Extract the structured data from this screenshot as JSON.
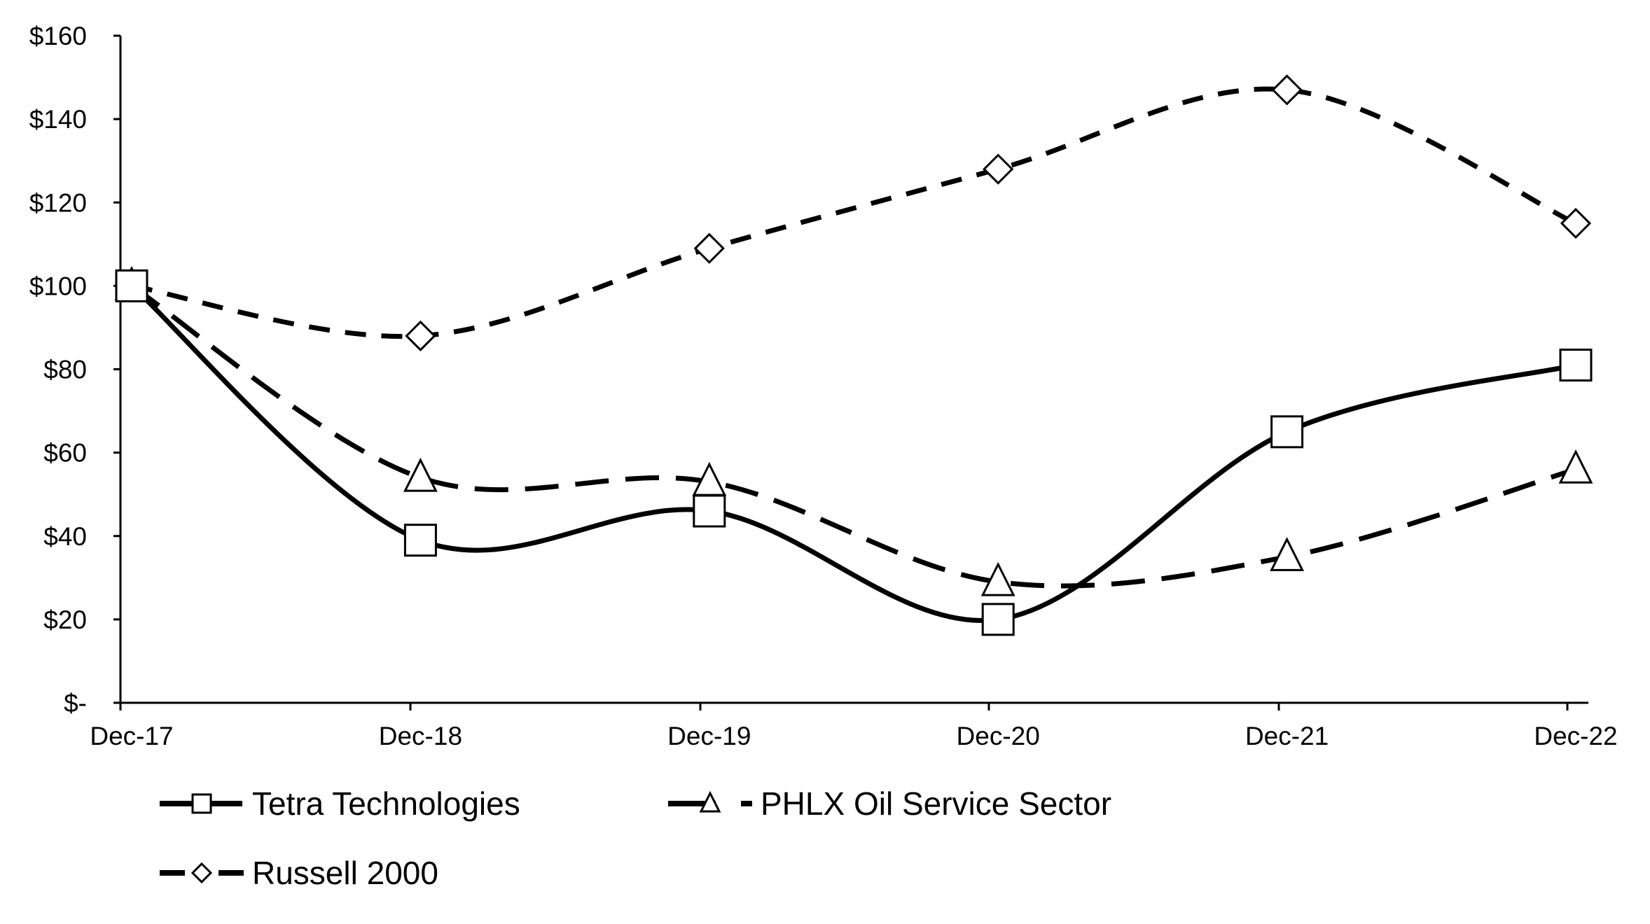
{
  "chart_data": {
    "type": "line",
    "title": "",
    "xlabel": "",
    "ylabel": "",
    "categories": [
      "Dec-17",
      "Dec-18",
      "Dec-19",
      "Dec-20",
      "Dec-21",
      "Dec-22"
    ],
    "y_ticks": [
      0,
      20,
      40,
      60,
      80,
      100,
      120,
      140,
      160
    ],
    "y_tick_labels": [
      "$-",
      "$20",
      "$40",
      "$60",
      "$80",
      "$100",
      "$120",
      "$140",
      "$160"
    ],
    "ylim": [
      0,
      160
    ],
    "grid": false,
    "legend_position": "bottom",
    "series": [
      {
        "name": "Tetra Technologies",
        "marker": "square",
        "line_style": "solid",
        "values": [
          100,
          39,
          46,
          20,
          65,
          81
        ]
      },
      {
        "name": "PHLX Oil Service Sector",
        "marker": "triangle",
        "line_style": "long-dash",
        "values": [
          100,
          54,
          53,
          29,
          35,
          56
        ]
      },
      {
        "name": "Russell 2000",
        "marker": "diamond",
        "line_style": "dash",
        "values": [
          100,
          88,
          109,
          128,
          147,
          115
        ]
      }
    ],
    "colors": {
      "line": "#000000",
      "marker_fill": "#ffffff",
      "background": "#ffffff"
    }
  }
}
